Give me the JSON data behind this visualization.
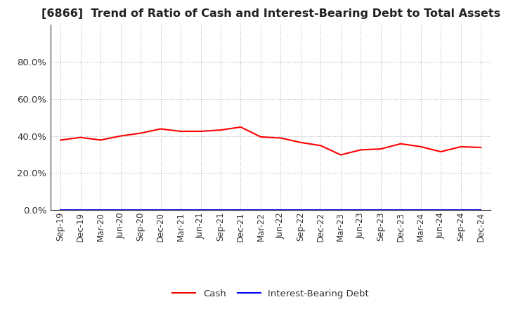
{
  "title": "[6866]  Trend of Ratio of Cash and Interest-Bearing Debt to Total Assets",
  "x_labels": [
    "Sep-19",
    "Dec-19",
    "Mar-20",
    "Jun-20",
    "Sep-20",
    "Dec-20",
    "Mar-21",
    "Jun-21",
    "Sep-21",
    "Dec-21",
    "Mar-22",
    "Jun-22",
    "Sep-22",
    "Dec-22",
    "Mar-23",
    "Jun-23",
    "Sep-23",
    "Dec-23",
    "Mar-24",
    "Jun-24",
    "Sep-24",
    "Dec-24"
  ],
  "cash_values": [
    0.378,
    0.392,
    0.378,
    0.4,
    0.415,
    0.438,
    0.425,
    0.425,
    0.432,
    0.448,
    0.395,
    0.389,
    0.365,
    0.348,
    0.298,
    0.325,
    0.33,
    0.358,
    0.342,
    0.315,
    0.342,
    0.338
  ],
  "debt_values": [
    0.0,
    0.0,
    0.0,
    0.0,
    0.0,
    0.0,
    0.0,
    0.0,
    0.0,
    0.0,
    0.0,
    0.0,
    0.0,
    0.0,
    0.0,
    0.0,
    0.0,
    0.0,
    0.0,
    0.0,
    0.0,
    0.0
  ],
  "cash_color": "#ff0000",
  "debt_color": "#0000ff",
  "ylim": [
    0.0,
    1.0
  ],
  "yticks": [
    0.0,
    0.2,
    0.4,
    0.6,
    0.8
  ],
  "ytick_labels": [
    "0.0%",
    "20.0%",
    "40.0%",
    "60.0%",
    "80.0%"
  ],
  "legend_labels": [
    "Cash",
    "Interest-Bearing Debt"
  ],
  "background_color": "#ffffff",
  "grid_color": "#b0b0b0",
  "title_fontsize": 11.5,
  "axis_fontsize": 8.5,
  "legend_fontsize": 9.5
}
